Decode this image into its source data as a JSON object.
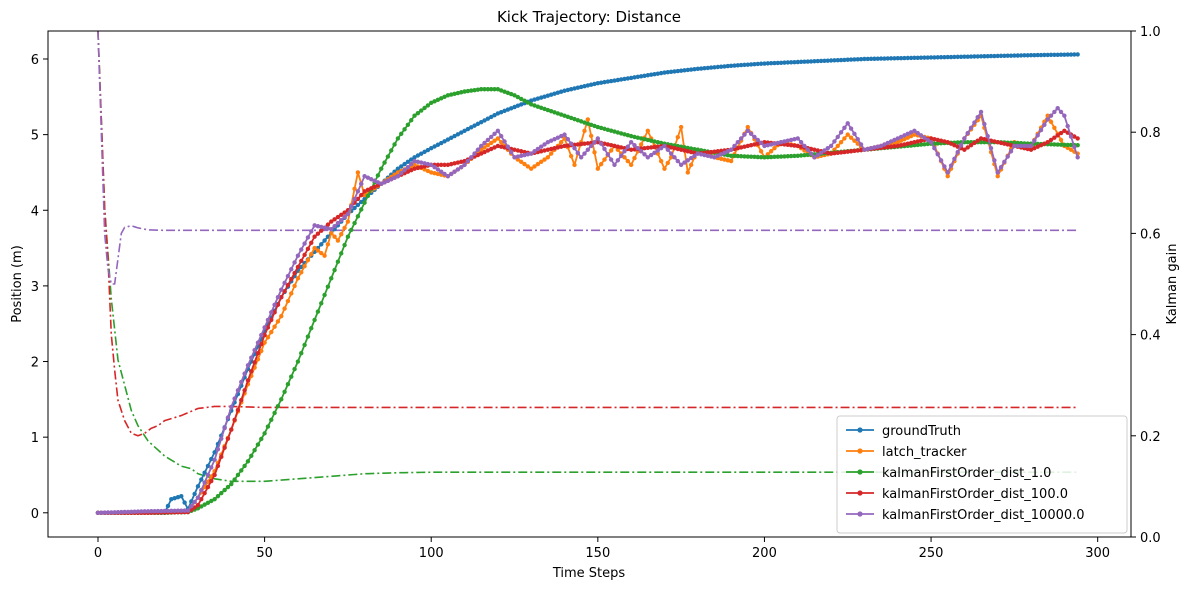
{
  "chart_data": {
    "type": "line",
    "title": "Kick Trajectory: Distance",
    "xlabel": "Time Steps",
    "ylabel": "Position (m)",
    "y2label": "Kalman gain",
    "xlim": [
      -15,
      310
    ],
    "ylim": [
      -0.32,
      6.37
    ],
    "y2lim": [
      0,
      1
    ],
    "xticks": [
      0,
      50,
      100,
      150,
      200,
      250,
      300
    ],
    "yticks": [
      0,
      1,
      2,
      3,
      4,
      5,
      6
    ],
    "y2ticks": [
      0.0,
      0.2,
      0.4,
      0.6,
      0.8,
      1.0
    ],
    "xtick_labels": [
      "0",
      "50",
      "100",
      "150",
      "200",
      "250",
      "300"
    ],
    "ytick_labels": [
      "0",
      "1",
      "2",
      "3",
      "4",
      "5",
      "6"
    ],
    "y2tick_labels": [
      "0.0",
      "0.2",
      "0.4",
      "0.6",
      "0.8",
      "1.0"
    ],
    "grid": false,
    "legend_position": "lower-right",
    "series": [
      {
        "name": "groundTruth",
        "color": "#1f77b4",
        "axis": "left",
        "style": "line-dot",
        "x": [
          0,
          10,
          20,
          22,
          25,
          27,
          30,
          35,
          40,
          45,
          50,
          55,
          60,
          65,
          70,
          75,
          80,
          85,
          90,
          95,
          100,
          110,
          120,
          130,
          140,
          150,
          160,
          170,
          180,
          190,
          200,
          210,
          220,
          230,
          240,
          250,
          260,
          270,
          280,
          294
        ],
        "y": [
          0,
          0,
          0,
          0.18,
          0.22,
          0.05,
          0.35,
          0.8,
          1.35,
          1.9,
          2.4,
          2.85,
          3.2,
          3.45,
          3.7,
          3.95,
          4.15,
          4.35,
          4.55,
          4.7,
          4.82,
          5.05,
          5.28,
          5.45,
          5.58,
          5.68,
          5.75,
          5.82,
          5.87,
          5.91,
          5.94,
          5.96,
          5.98,
          6.0,
          6.01,
          6.02,
          6.03,
          6.04,
          6.05,
          6.06
        ]
      },
      {
        "name": "latch_tracker",
        "color": "#ff7f0e",
        "axis": "left",
        "style": "line-dot",
        "x": [
          0,
          15,
          27,
          30,
          35,
          40,
          45,
          50,
          55,
          60,
          65,
          68,
          70,
          72,
          75,
          78,
          80,
          85,
          90,
          95,
          100,
          105,
          110,
          115,
          120,
          125,
          130,
          135,
          140,
          143,
          147,
          150,
          155,
          160,
          165,
          170,
          172,
          175,
          177,
          180,
          185,
          190,
          195,
          200,
          205,
          210,
          215,
          220,
          225,
          230,
          235,
          240,
          245,
          250,
          255,
          260,
          265,
          270,
          275,
          280,
          285,
          290,
          294
        ],
        "y": [
          0,
          0,
          0.02,
          0.2,
          0.55,
          1.1,
          1.7,
          2.25,
          2.6,
          3.1,
          3.5,
          3.4,
          3.7,
          3.6,
          3.85,
          4.5,
          4.2,
          4.35,
          4.5,
          4.6,
          4.5,
          4.45,
          4.6,
          4.8,
          4.95,
          4.7,
          4.55,
          4.7,
          4.95,
          4.6,
          5.2,
          4.55,
          4.85,
          4.6,
          5.05,
          4.55,
          4.7,
          5.1,
          4.5,
          4.8,
          4.7,
          4.65,
          5.1,
          4.7,
          4.9,
          4.85,
          4.7,
          4.75,
          5.0,
          4.8,
          4.85,
          4.9,
          5.0,
          4.95,
          4.45,
          4.95,
          5.25,
          4.45,
          4.9,
          4.85,
          5.25,
          4.85,
          4.75
        ]
      },
      {
        "name": "kalmanFirstOrder_dist_1.0",
        "color": "#2ca02c",
        "axis": "left",
        "style": "line-dot",
        "x": [
          0,
          20,
          27,
          30,
          35,
          40,
          45,
          50,
          55,
          60,
          65,
          70,
          75,
          80,
          85,
          90,
          95,
          100,
          105,
          110,
          115,
          120,
          125,
          130,
          140,
          150,
          160,
          170,
          180,
          190,
          200,
          210,
          220,
          230,
          240,
          250,
          260,
          270,
          280,
          294
        ],
        "y": [
          0,
          0,
          0.01,
          0.06,
          0.18,
          0.38,
          0.68,
          1.05,
          1.5,
          2.0,
          2.55,
          3.1,
          3.65,
          4.1,
          4.55,
          4.95,
          5.25,
          5.42,
          5.52,
          5.57,
          5.6,
          5.6,
          5.52,
          5.4,
          5.25,
          5.1,
          4.98,
          4.88,
          4.8,
          4.72,
          4.7,
          4.72,
          4.76,
          4.8,
          4.84,
          4.88,
          4.9,
          4.9,
          4.88,
          4.86
        ]
      },
      {
        "name": "kalmanFirstOrder_dist_100.0",
        "color": "#d62728",
        "axis": "left",
        "style": "line-dot",
        "x": [
          0,
          15,
          27,
          30,
          35,
          40,
          45,
          50,
          55,
          60,
          65,
          70,
          75,
          80,
          85,
          90,
          95,
          100,
          105,
          110,
          115,
          120,
          125,
          130,
          140,
          150,
          160,
          170,
          180,
          190,
          200,
          210,
          220,
          230,
          240,
          250,
          255,
          260,
          265,
          270,
          275,
          280,
          285,
          290,
          294
        ],
        "y": [
          0,
          0,
          0.01,
          0.1,
          0.5,
          1.1,
          1.75,
          2.35,
          2.85,
          3.25,
          3.65,
          3.85,
          4.0,
          4.25,
          4.35,
          4.45,
          4.55,
          4.6,
          4.6,
          4.65,
          4.75,
          4.85,
          4.8,
          4.75,
          4.85,
          4.9,
          4.8,
          4.85,
          4.75,
          4.8,
          4.9,
          4.85,
          4.75,
          4.8,
          4.85,
          4.95,
          4.9,
          4.8,
          4.95,
          4.9,
          4.85,
          4.8,
          4.9,
          5.05,
          4.95
        ]
      },
      {
        "name": "kalmanFirstOrder_dist_10000.0",
        "color": "#9467bd",
        "axis": "left",
        "style": "line-dot",
        "x": [
          0,
          15,
          27,
          30,
          35,
          40,
          45,
          50,
          55,
          60,
          65,
          70,
          75,
          80,
          85,
          90,
          95,
          100,
          105,
          110,
          115,
          120,
          125,
          130,
          135,
          140,
          145,
          150,
          155,
          160,
          165,
          170,
          175,
          180,
          185,
          190,
          195,
          200,
          205,
          210,
          215,
          220,
          225,
          230,
          235,
          240,
          245,
          250,
          255,
          260,
          265,
          270,
          275,
          280,
          285,
          288,
          290,
          294
        ],
        "y": [
          0,
          0.02,
          0.03,
          0.2,
          0.7,
          1.4,
          1.95,
          2.45,
          2.95,
          3.4,
          3.8,
          3.75,
          3.95,
          4.45,
          4.35,
          4.45,
          4.65,
          4.6,
          4.45,
          4.6,
          4.85,
          5.05,
          4.7,
          4.75,
          4.9,
          5.0,
          4.7,
          4.95,
          4.6,
          4.9,
          4.7,
          4.85,
          4.6,
          4.75,
          4.7,
          4.8,
          5.05,
          4.85,
          4.9,
          4.95,
          4.7,
          4.85,
          5.15,
          4.8,
          4.85,
          4.95,
          5.05,
          4.9,
          4.5,
          4.95,
          5.3,
          4.5,
          4.85,
          4.85,
          5.2,
          5.35,
          5.25,
          4.7
        ]
      },
      {
        "name": "",
        "color": "#2ca02c",
        "axis": "right",
        "style": "dash-dot",
        "x": [
          0,
          2,
          4,
          6,
          8,
          10,
          12,
          15,
          20,
          25,
          28,
          30,
          35,
          40,
          50,
          60,
          70,
          80,
          90,
          100,
          120,
          150,
          200,
          250,
          294
        ],
        "y": [
          1.0,
          0.65,
          0.47,
          0.35,
          0.3,
          0.25,
          0.22,
          0.19,
          0.16,
          0.14,
          0.135,
          0.125,
          0.115,
          0.11,
          0.11,
          0.115,
          0.12,
          0.125,
          0.127,
          0.128,
          0.128,
          0.128,
          0.128,
          0.128,
          0.128
        ]
      },
      {
        "name": "",
        "color": "#d62728",
        "axis": "right",
        "style": "dash-dot",
        "x": [
          0,
          2,
          3,
          4,
          5,
          6,
          8,
          10,
          12,
          14,
          16,
          18,
          20,
          25,
          30,
          35,
          40,
          50,
          100,
          150,
          200,
          250,
          294
        ],
        "y": [
          1.0,
          0.65,
          0.55,
          0.4,
          0.33,
          0.27,
          0.23,
          0.205,
          0.2,
          0.205,
          0.215,
          0.22,
          0.23,
          0.24,
          0.254,
          0.258,
          0.258,
          0.256,
          0.256,
          0.256,
          0.256,
          0.256,
          0.256
        ]
      },
      {
        "name": "",
        "color": "#9467bd",
        "axis": "right",
        "style": "dash-dot",
        "x": [
          0,
          1,
          2,
          3,
          4,
          5,
          6,
          7,
          8,
          10,
          12,
          15,
          20,
          50,
          100,
          150,
          200,
          250,
          294
        ],
        "y": [
          1.0,
          0.8,
          0.6,
          0.53,
          0.5,
          0.5,
          0.55,
          0.6,
          0.612,
          0.615,
          0.611,
          0.607,
          0.606,
          0.606,
          0.606,
          0.606,
          0.606,
          0.606,
          0.606
        ]
      }
    ]
  }
}
